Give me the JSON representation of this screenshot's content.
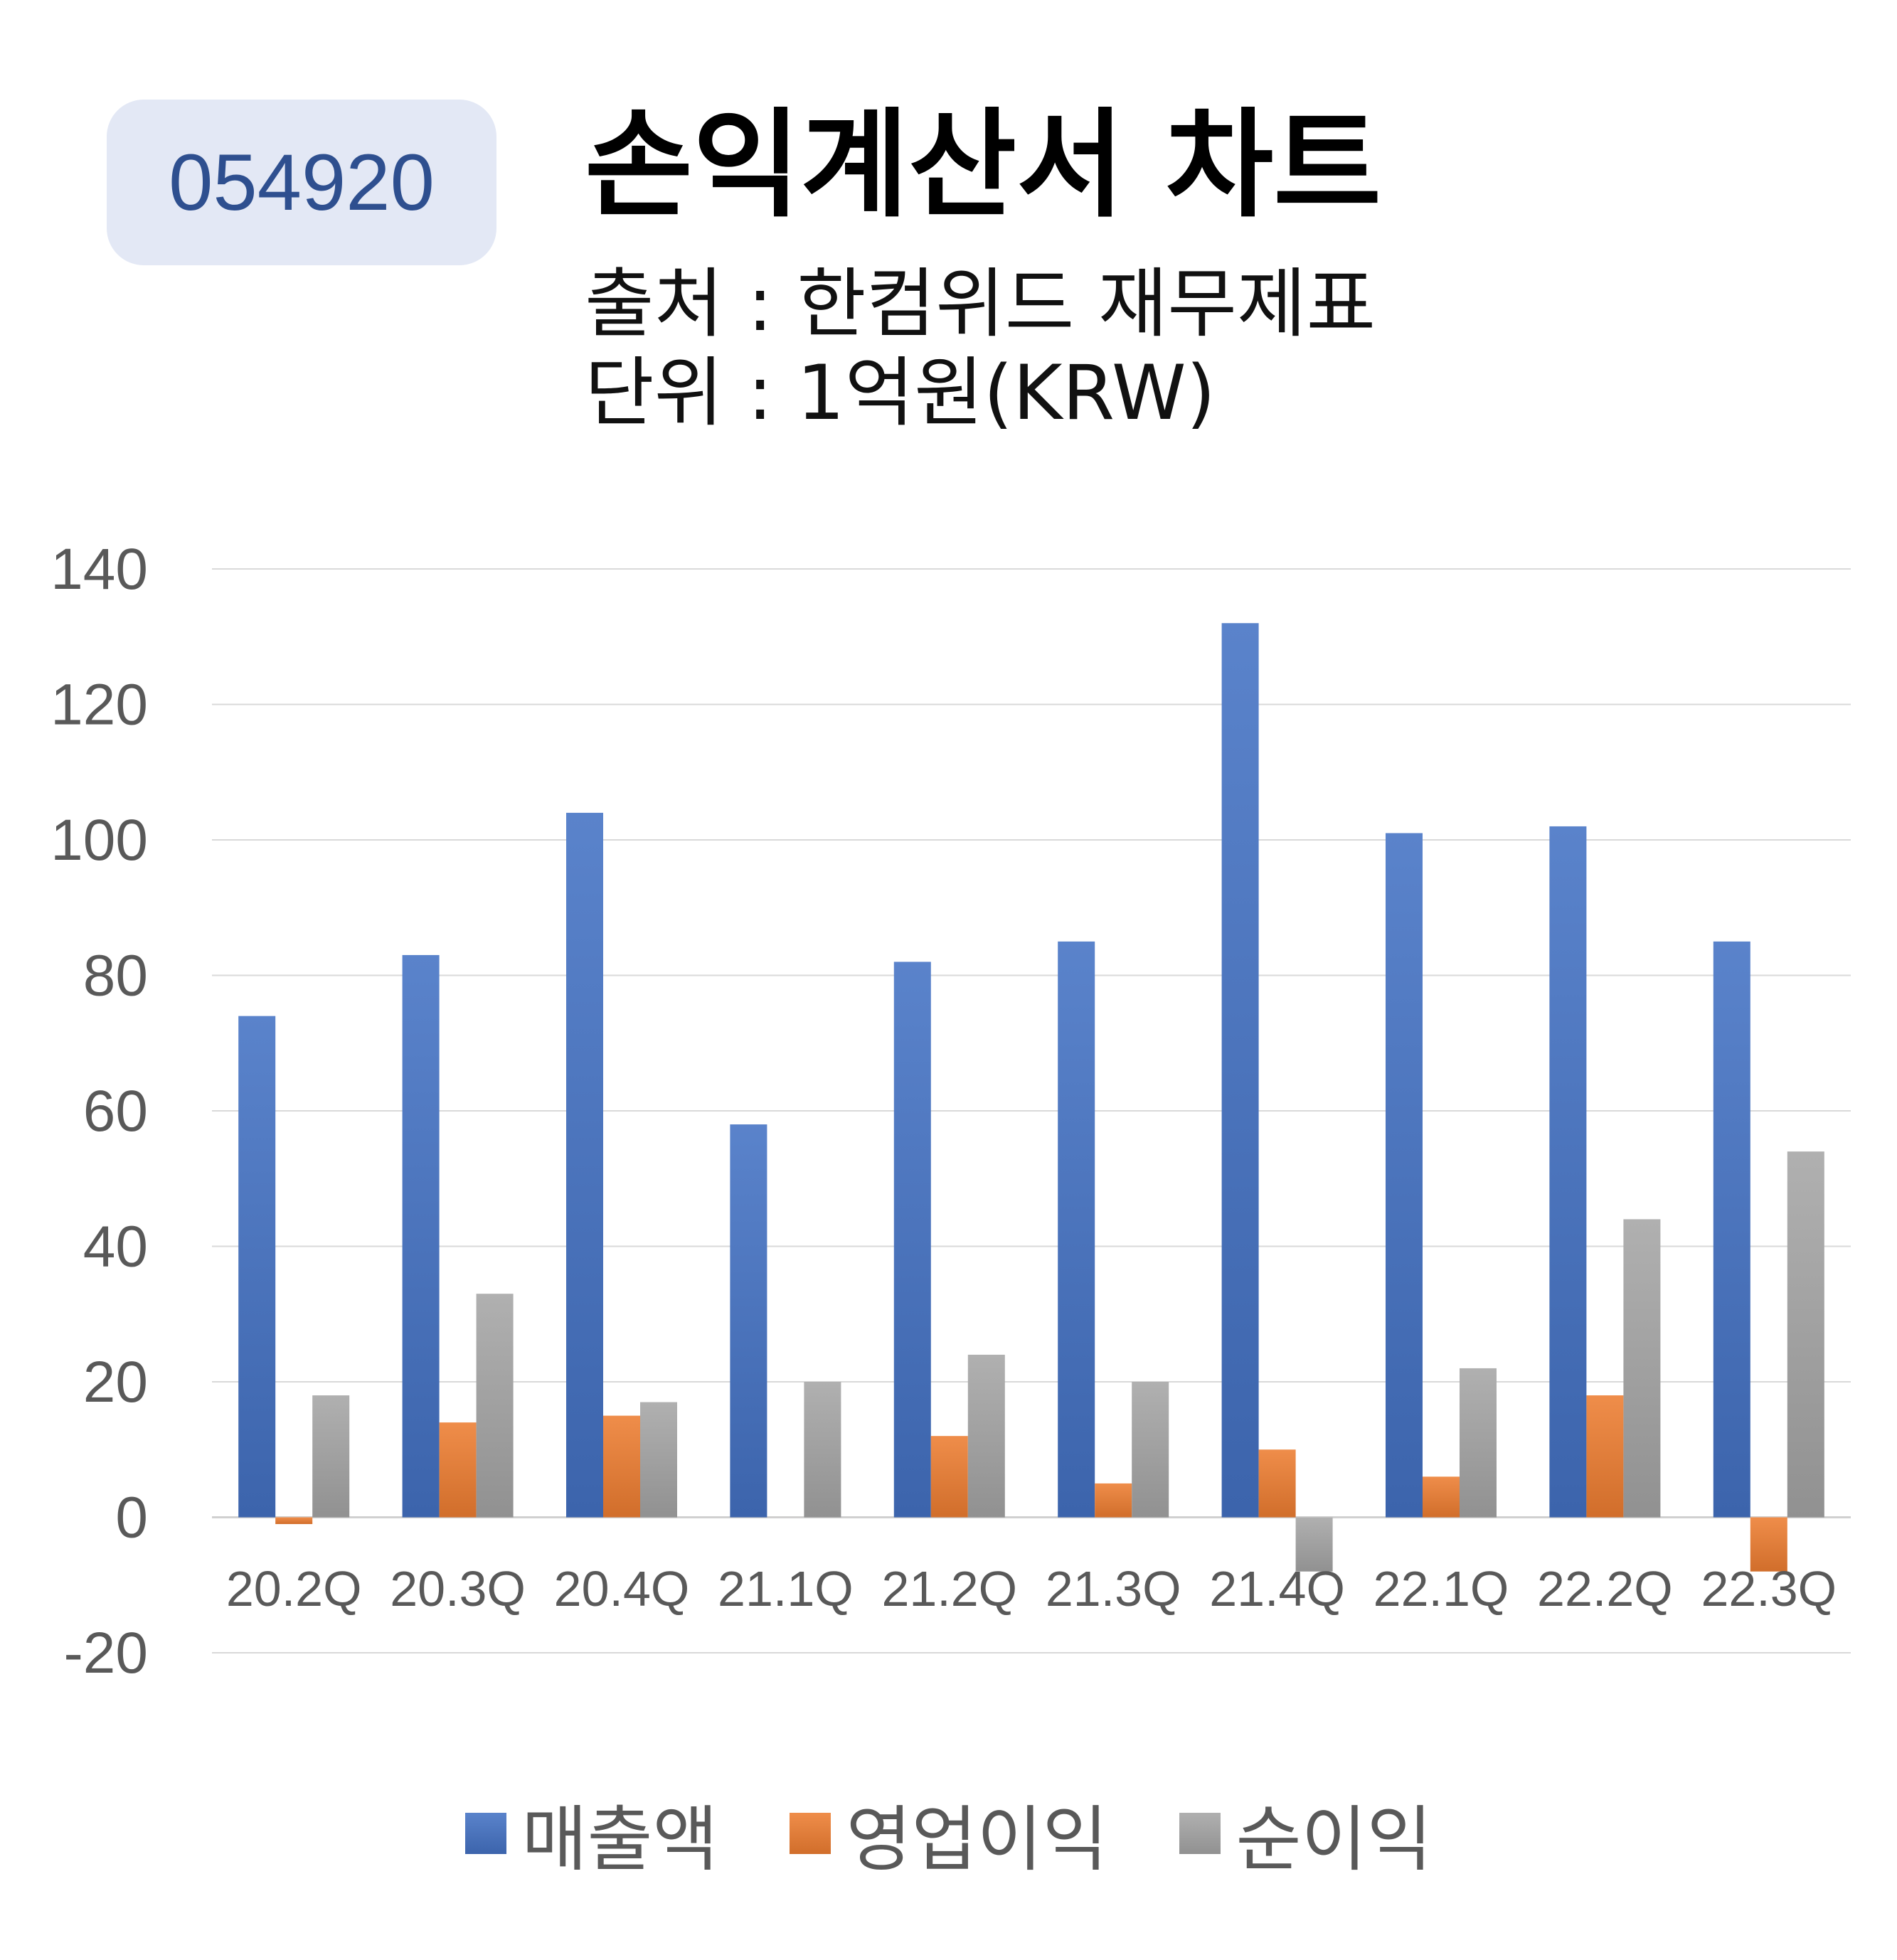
{
  "header": {
    "code": "054920",
    "title": "손익계산서 차트",
    "source": "출처 : 한컴위드 재무제표",
    "unit": "단위 : 1억원(KRW)"
  },
  "chart_data": {
    "type": "bar",
    "categories": [
      "20.2Q",
      "20.3Q",
      "20.4Q",
      "21.1Q",
      "21.2Q",
      "21.3Q",
      "21.4Q",
      "22.1Q",
      "22.2Q",
      "22.3Q"
    ],
    "series": [
      {
        "name": "매출액",
        "values": [
          74,
          83,
          104,
          58,
          82,
          85,
          132,
          101,
          102,
          85
        ],
        "color": "#4472c4"
      },
      {
        "name": "영업이익",
        "values": [
          -1,
          14,
          15,
          0,
          12,
          5,
          10,
          6,
          18,
          -8
        ],
        "color": "#ed7d31"
      },
      {
        "name": "순이익",
        "values": [
          18,
          33,
          17,
          20,
          24,
          20,
          -8,
          22,
          44,
          54
        ],
        "color": "#a5a5a5"
      }
    ],
    "ylim": [
      -20,
      140
    ],
    "yticks": [
      -20,
      0,
      20,
      40,
      60,
      80,
      100,
      120,
      140
    ],
    "grid": true,
    "legend_position": "bottom"
  }
}
